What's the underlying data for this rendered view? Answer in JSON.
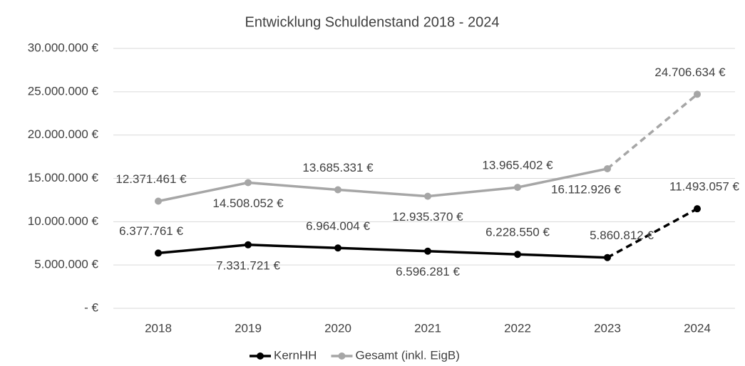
{
  "chart_data": {
    "type": "line",
    "title": "Entwicklung Schuldenstand 2018 - 2024",
    "categories": [
      "2018",
      "2019",
      "2020",
      "2021",
      "2022",
      "2023",
      "2024"
    ],
    "series": [
      {
        "name": "KernHH",
        "color": "#000000",
        "dashed_last": true,
        "values": [
          6377761,
          7331721,
          6964004,
          6596281,
          6228550,
          5860812,
          11493057
        ],
        "value_labels": [
          "6.377.761 €",
          "7.331.721 €",
          "6.964.004 €",
          "6.596.281 €",
          "6.228.550 €",
          "5.860.812 €",
          "11.493.057 €"
        ]
      },
      {
        "name": "Gesamt (inkl. EigB)",
        "color": "#a6a6a6",
        "dashed_last": true,
        "values": [
          12371461,
          14508052,
          13685331,
          12935370,
          13965402,
          16112926,
          24706634
        ],
        "value_labels": [
          "12.371.461 €",
          "14.508.052 €",
          "13.685.331 €",
          "12.935.370 €",
          "13.965.402 €",
          "16.112.926 €",
          "24.706.634 €"
        ]
      }
    ],
    "ylim": [
      0,
      30000000
    ],
    "yticks": [
      {
        "value": 0,
        "label": "-   €"
      },
      {
        "value": 5000000,
        "label": "5.000.000 €"
      },
      {
        "value": 10000000,
        "label": "10.000.000 €"
      },
      {
        "value": 15000000,
        "label": "15.000.000 €"
      },
      {
        "value": 20000000,
        "label": "20.000.000 €"
      },
      {
        "value": 25000000,
        "label": "25.000.000 €"
      },
      {
        "value": 30000000,
        "label": "30.000.000 €"
      }
    ],
    "grid": true,
    "legend": "bottom"
  }
}
